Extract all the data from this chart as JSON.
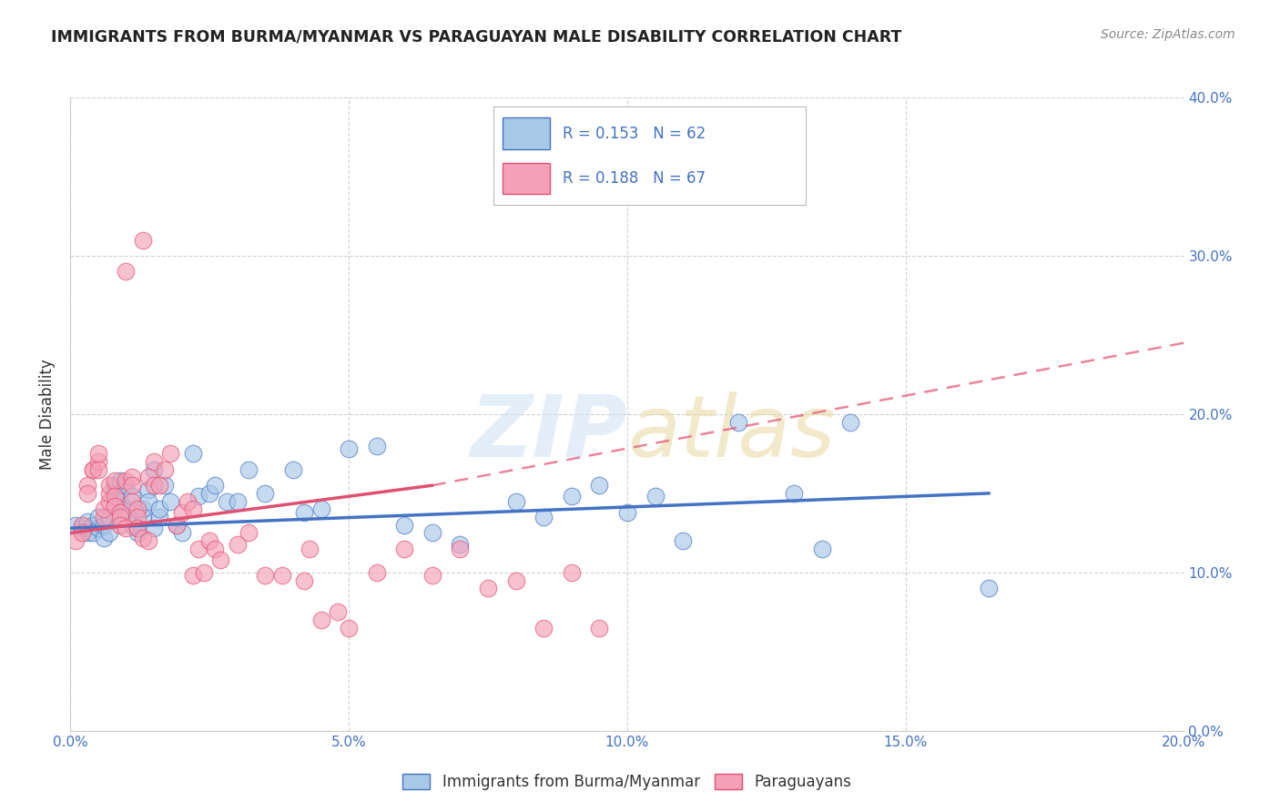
{
  "title": "IMMIGRANTS FROM BURMA/MYANMAR VS PARAGUAYAN MALE DISABILITY CORRELATION CHART",
  "source": "Source: ZipAtlas.com",
  "ylabel_label": "Male Disability",
  "xlim": [
    0.0,
    0.2
  ],
  "ylim": [
    0.0,
    0.4
  ],
  "xticks": [
    0.0,
    0.05,
    0.1,
    0.15,
    0.2
  ],
  "yticks": [
    0.0,
    0.1,
    0.2,
    0.3,
    0.4
  ],
  "legend_bottom": [
    "Immigrants from Burma/Myanmar",
    "Paraguayans"
  ],
  "blue_scatter": [
    [
      0.001,
      0.13
    ],
    [
      0.002,
      0.128
    ],
    [
      0.003,
      0.125
    ],
    [
      0.003,
      0.132
    ],
    [
      0.004,
      0.13
    ],
    [
      0.004,
      0.125
    ],
    [
      0.005,
      0.128
    ],
    [
      0.005,
      0.135
    ],
    [
      0.006,
      0.122
    ],
    [
      0.006,
      0.13
    ],
    [
      0.007,
      0.125
    ],
    [
      0.007,
      0.135
    ],
    [
      0.008,
      0.155
    ],
    [
      0.008,
      0.15
    ],
    [
      0.009,
      0.158
    ],
    [
      0.009,
      0.145
    ],
    [
      0.01,
      0.14
    ],
    [
      0.01,
      0.155
    ],
    [
      0.011,
      0.148
    ],
    [
      0.011,
      0.13
    ],
    [
      0.012,
      0.125
    ],
    [
      0.012,
      0.128
    ],
    [
      0.013,
      0.135
    ],
    [
      0.013,
      0.14
    ],
    [
      0.014,
      0.152
    ],
    [
      0.014,
      0.145
    ],
    [
      0.015,
      0.128
    ],
    [
      0.015,
      0.165
    ],
    [
      0.016,
      0.135
    ],
    [
      0.016,
      0.14
    ],
    [
      0.017,
      0.155
    ],
    [
      0.018,
      0.145
    ],
    [
      0.019,
      0.13
    ],
    [
      0.02,
      0.125
    ],
    [
      0.022,
      0.175
    ],
    [
      0.023,
      0.148
    ],
    [
      0.025,
      0.15
    ],
    [
      0.026,
      0.155
    ],
    [
      0.028,
      0.145
    ],
    [
      0.03,
      0.145
    ],
    [
      0.032,
      0.165
    ],
    [
      0.035,
      0.15
    ],
    [
      0.04,
      0.165
    ],
    [
      0.042,
      0.138
    ],
    [
      0.045,
      0.14
    ],
    [
      0.05,
      0.178
    ],
    [
      0.055,
      0.18
    ],
    [
      0.06,
      0.13
    ],
    [
      0.065,
      0.125
    ],
    [
      0.07,
      0.118
    ],
    [
      0.08,
      0.145
    ],
    [
      0.085,
      0.135
    ],
    [
      0.09,
      0.148
    ],
    [
      0.095,
      0.155
    ],
    [
      0.1,
      0.138
    ],
    [
      0.105,
      0.148
    ],
    [
      0.11,
      0.12
    ],
    [
      0.12,
      0.195
    ],
    [
      0.13,
      0.15
    ],
    [
      0.135,
      0.115
    ],
    [
      0.14,
      0.195
    ],
    [
      0.165,
      0.09
    ]
  ],
  "pink_scatter": [
    [
      0.001,
      0.12
    ],
    [
      0.002,
      0.13
    ],
    [
      0.002,
      0.125
    ],
    [
      0.003,
      0.155
    ],
    [
      0.003,
      0.15
    ],
    [
      0.004,
      0.165
    ],
    [
      0.004,
      0.165
    ],
    [
      0.005,
      0.17
    ],
    [
      0.005,
      0.175
    ],
    [
      0.005,
      0.165
    ],
    [
      0.006,
      0.135
    ],
    [
      0.006,
      0.14
    ],
    [
      0.007,
      0.145
    ],
    [
      0.007,
      0.15
    ],
    [
      0.007,
      0.155
    ],
    [
      0.008,
      0.158
    ],
    [
      0.008,
      0.148
    ],
    [
      0.008,
      0.142
    ],
    [
      0.009,
      0.138
    ],
    [
      0.009,
      0.135
    ],
    [
      0.009,
      0.13
    ],
    [
      0.01,
      0.29
    ],
    [
      0.01,
      0.128
    ],
    [
      0.01,
      0.158
    ],
    [
      0.011,
      0.16
    ],
    [
      0.011,
      0.155
    ],
    [
      0.011,
      0.145
    ],
    [
      0.012,
      0.14
    ],
    [
      0.012,
      0.135
    ],
    [
      0.012,
      0.128
    ],
    [
      0.013,
      0.122
    ],
    [
      0.013,
      0.31
    ],
    [
      0.014,
      0.12
    ],
    [
      0.014,
      0.16
    ],
    [
      0.015,
      0.17
    ],
    [
      0.015,
      0.155
    ],
    [
      0.016,
      0.155
    ],
    [
      0.017,
      0.165
    ],
    [
      0.018,
      0.175
    ],
    [
      0.019,
      0.13
    ],
    [
      0.02,
      0.138
    ],
    [
      0.021,
      0.145
    ],
    [
      0.022,
      0.098
    ],
    [
      0.022,
      0.14
    ],
    [
      0.023,
      0.115
    ],
    [
      0.024,
      0.1
    ],
    [
      0.025,
      0.12
    ],
    [
      0.026,
      0.115
    ],
    [
      0.027,
      0.108
    ],
    [
      0.03,
      0.118
    ],
    [
      0.032,
      0.125
    ],
    [
      0.035,
      0.098
    ],
    [
      0.038,
      0.098
    ],
    [
      0.042,
      0.095
    ],
    [
      0.043,
      0.115
    ],
    [
      0.045,
      0.07
    ],
    [
      0.048,
      0.075
    ],
    [
      0.05,
      0.065
    ],
    [
      0.055,
      0.1
    ],
    [
      0.06,
      0.115
    ],
    [
      0.065,
      0.098
    ],
    [
      0.07,
      0.115
    ],
    [
      0.075,
      0.09
    ],
    [
      0.08,
      0.095
    ],
    [
      0.085,
      0.065
    ],
    [
      0.09,
      0.1
    ],
    [
      0.095,
      0.065
    ]
  ],
  "blue_line": {
    "x0": 0.0,
    "y0": 0.128,
    "x1": 0.165,
    "y1": 0.15
  },
  "pink_line_solid": {
    "x0": 0.0,
    "y0": 0.125,
    "x1": 0.065,
    "y1": 0.155
  },
  "pink_line_dashed": {
    "x0": 0.065,
    "y0": 0.155,
    "x1": 0.2,
    "y1": 0.245
  },
  "blue_color": "#4472c4",
  "pink_color": "#e05070",
  "scatter_blue_fill": "#a8c8e8",
  "scatter_blue_edge": "#4472c4",
  "scatter_pink_fill": "#f4a0b8",
  "scatter_pink_edge": "#e05070",
  "background_color": "#ffffff",
  "grid_color": "#cccccc",
  "tick_color": "#4472c4",
  "title_color": "#222222",
  "source_color": "#888888",
  "ylabel_color": "#333333"
}
